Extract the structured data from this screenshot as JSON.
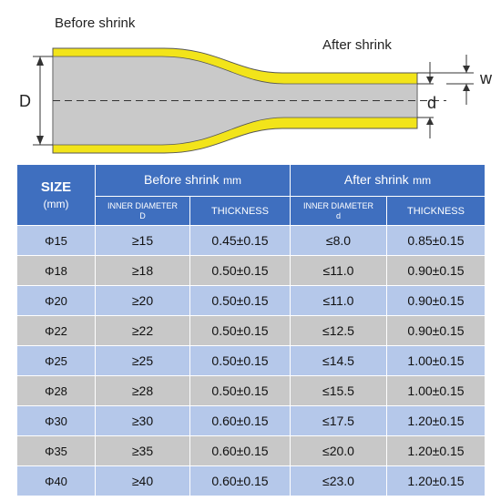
{
  "diagram": {
    "before_label": "Before  shrink",
    "after_label": "After shrink",
    "d_outer": "D",
    "d_inner": "d",
    "w_label": "w",
    "colors": {
      "tube_fill": "#c9c9c9",
      "tube_wall": "#f2e41a",
      "outline": "#555555"
    }
  },
  "table": {
    "size_header": "SIZE",
    "size_unit": "(mm)",
    "before_header": "Before  shrink",
    "before_unit": "mm",
    "after_header": "After shrink",
    "after_unit": "mm",
    "before_inner_diameter": "INNER DIAMETER",
    "before_inner_symbol": "D",
    "before_thickness": "THICKNESS",
    "after_inner_diameter": "INNER DIAMETER",
    "after_inner_symbol": "d",
    "after_thickness": "THICKNESS",
    "rows": [
      {
        "size": "Φ15",
        "before_d": "≥15",
        "before_t": "0.45±0.15",
        "after_d": "≤8.0",
        "after_t": "0.85±0.15"
      },
      {
        "size": "Φ18",
        "before_d": "≥18",
        "before_t": "0.50±0.15",
        "after_d": "≤11.0",
        "after_t": "0.90±0.15"
      },
      {
        "size": "Φ20",
        "before_d": "≥20",
        "before_t": "0.50±0.15",
        "after_d": "≤11.0",
        "after_t": "0.90±0.15"
      },
      {
        "size": "Φ22",
        "before_d": "≥22",
        "before_t": "0.50±0.15",
        "after_d": "≤12.5",
        "after_t": "0.90±0.15"
      },
      {
        "size": "Φ25",
        "before_d": "≥25",
        "before_t": "0.50±0.15",
        "after_d": "≤14.5",
        "after_t": "1.00±0.15"
      },
      {
        "size": "Φ28",
        "before_d": "≥28",
        "before_t": "0.50±0.15",
        "after_d": "≤15.5",
        "after_t": "1.00±0.15"
      },
      {
        "size": "Φ30",
        "before_d": "≥30",
        "before_t": "0.60±0.15",
        "after_d": "≤17.5",
        "after_t": "1.20±0.15"
      },
      {
        "size": "Φ35",
        "before_d": "≥35",
        "before_t": "0.60±0.15",
        "after_d": "≤20.0",
        "after_t": "1.20±0.15"
      },
      {
        "size": "Φ40",
        "before_d": "≥40",
        "before_t": "0.60±0.15",
        "after_d": "≤23.0",
        "after_t": "1.20±0.15"
      }
    ]
  }
}
